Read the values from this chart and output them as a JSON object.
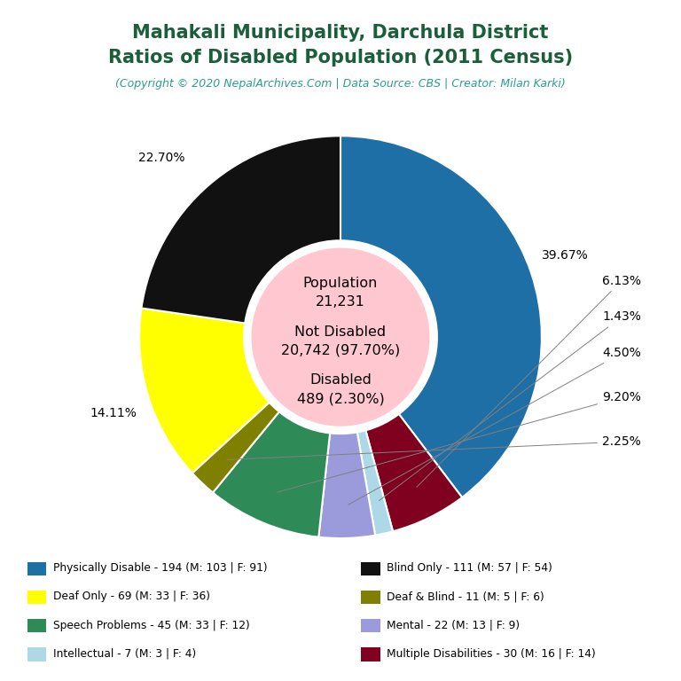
{
  "title_line1": "Mahakali Municipality, Darchula District",
  "title_line2": "Ratios of Disabled Population (2011 Census)",
  "subtitle": "(Copyright © 2020 NepalArchives.Com | Data Source: CBS | Creator: Milan Karki)",
  "title_color": "#1a5e3a",
  "subtitle_color": "#2a9d8f",
  "center_bg": "#ffc8d0",
  "categories_left": [
    "Physically Disable - 194 (M: 103 | F: 91)",
    "Deaf Only - 69 (M: 33 | F: 36)",
    "Speech Problems - 45 (M: 33 | F: 12)",
    "Intellectual - 7 (M: 3 | F: 4)"
  ],
  "categories_right": [
    "Blind Only - 111 (M: 57 | F: 54)",
    "Deaf & Blind - 11 (M: 5 | F: 6)",
    "Mental - 22 (M: 13 | F: 9)",
    "Multiple Disabilities - 30 (M: 16 | F: 14)"
  ],
  "segment_order": [
    "Physically Disable",
    "Multiple Disabilities",
    "Intellectual",
    "Mental",
    "Speech Problems",
    "Deaf & Blind",
    "Deaf Only",
    "Blind Only"
  ],
  "values_ordered": [
    194,
    30,
    7,
    22,
    45,
    11,
    69,
    111
  ],
  "percentages_ordered": [
    "39.67%",
    "6.13%",
    "1.43%",
    "4.50%",
    "9.20%",
    "2.25%",
    "14.11%",
    "22.70%"
  ],
  "colors_ordered": [
    "#1e6fa5",
    "#800020",
    "#add8e6",
    "#9b9bdb",
    "#2e8b57",
    "#808000",
    "#ffff00",
    "#111111"
  ],
  "colors_legend": [
    "#1e6fa5",
    "#111111",
    "#ffff00",
    "#808000",
    "#2e8b57",
    "#9b9bdb",
    "#add8e6",
    "#800020"
  ],
  "background_color": "#ffffff",
  "wedge_edge_color": "#ffffff"
}
